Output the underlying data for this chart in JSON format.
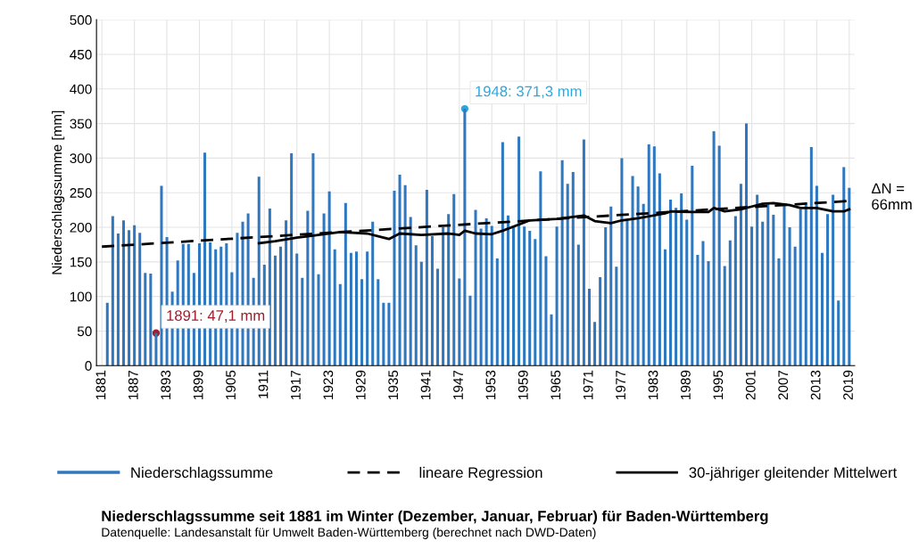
{
  "chart_data": {
    "type": "bar",
    "title": "Niederschlagssumme seit 1881 im Winter (Dezember, Januar, Februar) für Baden-Württemberg",
    "ylabel": "Niederschlagssumme [mm]",
    "x": [
      1882,
      1883,
      1884,
      1885,
      1886,
      1887,
      1888,
      1889,
      1890,
      1891,
      1892,
      1893,
      1894,
      1895,
      1896,
      1897,
      1898,
      1899,
      1900,
      1901,
      1902,
      1903,
      1904,
      1905,
      1906,
      1907,
      1908,
      1909,
      1910,
      1911,
      1912,
      1913,
      1914,
      1915,
      1916,
      1917,
      1918,
      1919,
      1920,
      1921,
      1922,
      1923,
      1924,
      1925,
      1926,
      1927,
      1928,
      1929,
      1930,
      1931,
      1932,
      1933,
      1934,
      1935,
      1936,
      1937,
      1938,
      1939,
      1940,
      1941,
      1942,
      1943,
      1944,
      1945,
      1946,
      1947,
      1948,
      1949,
      1950,
      1951,
      1952,
      1953,
      1954,
      1955,
      1956,
      1957,
      1958,
      1959,
      1960,
      1961,
      1962,
      1963,
      1964,
      1965,
      1966,
      1967,
      1968,
      1969,
      1970,
      1971,
      1972,
      1973,
      1974,
      1975,
      1976,
      1977,
      1978,
      1979,
      1980,
      1981,
      1982,
      1983,
      1984,
      1985,
      1986,
      1987,
      1988,
      1989,
      1990,
      1991,
      1992,
      1993,
      1994,
      1995,
      1996,
      1997,
      1998,
      1999,
      2000,
      2001,
      2002,
      2003,
      2004,
      2005,
      2006,
      2007,
      2008,
      2009,
      2010,
      2011,
      2012,
      2013,
      2014,
      2015,
      2016,
      2017,
      2018,
      2019
    ],
    "series": [
      {
        "type": "scatter",
        "color": "#a01f2d",
        "x": [
          1891
        ],
        "values": [
          47.1
        ]
      },
      {
        "type": "scatter",
        "color": "#29a8e0",
        "x": [
          1948
        ],
        "values": [
          371.3
        ]
      },
      {
        "name": "Niederschlagssumme",
        "color": "#2f78c0",
        "values": [
          91,
          216,
          191,
          210,
          196,
          203,
          192,
          134,
          133,
          47.1,
          260,
          186,
          107,
          152,
          176,
          176,
          134,
          177,
          308,
          178,
          168,
          172,
          177,
          135,
          192,
          208,
          220,
          127,
          273,
          146,
          227,
          159,
          172,
          210,
          307,
          162,
          127,
          224,
          307,
          132,
          220,
          252,
          168,
          118,
          235,
          163,
          165,
          125,
          165,
          208,
          125,
          91,
          91,
          253,
          276,
          261,
          215,
          174,
          150,
          254,
          187,
          140,
          200,
          219,
          248,
          126,
          371.3,
          101,
          225,
          198,
          213,
          202,
          155,
          323,
          217,
          200,
          331,
          201,
          195,
          183,
          281,
          158,
          74,
          201,
          297,
          263,
          280,
          175,
          327,
          111,
          63,
          128,
          200,
          230,
          143,
          300,
          210,
          274,
          259,
          234,
          320,
          317,
          278,
          168,
          240,
          228,
          249,
          211,
          289,
          160,
          180,
          151,
          339,
          318,
          144,
          181,
          216,
          263,
          350,
          201,
          247,
          208,
          235,
          218,
          155,
          234,
          200,
          172,
          226,
          236,
          316,
          260,
          163,
          219,
          247,
          94,
          287,
          257
        ]
      },
      {
        "name": "lineare Regression",
        "type": "line",
        "color": "#000000",
        "line_style": "dashed",
        "x": [
          1881,
          2019
        ],
        "values": [
          172,
          238
        ]
      },
      {
        "name": "30-jähriger gleitender Mittelwert",
        "type": "line",
        "color": "#000000",
        "line_style": "solid",
        "x": [
          1910,
          1913,
          1917,
          1920,
          1925,
          1930,
          1933,
          1934,
          1936,
          1940,
          1945,
          1947,
          1948,
          1950,
          1953,
          1955,
          1960,
          1965,
          1970,
          1972,
          1975,
          1977,
          1980,
          1985,
          1986,
          1990,
          1993,
          1994,
          1996,
          1999,
          2001,
          2003,
          2005,
          2008,
          2010,
          2013,
          2016,
          2018,
          2019
        ],
        "values": [
          177,
          180,
          185,
          188,
          193,
          191,
          185,
          183,
          191,
          189,
          191,
          189,
          195,
          191,
          190,
          195,
          210,
          212,
          217,
          209,
          206,
          210,
          213,
          220,
          223,
          222,
          222,
          228,
          223,
          226,
          230,
          234,
          235,
          232,
          228,
          228,
          223,
          223,
          226
        ]
      }
    ],
    "annotations": [
      {
        "text": "1891: 47,1 mm",
        "x": 1891,
        "y": 47.1
      },
      {
        "text": "1948: 371,3 mm",
        "x": 1948,
        "y": 371.3
      },
      "ΔN =\n66mm",
      "Datenquelle: Landesanstalt für Umwelt Baden-Württemberg (berechnet nach DWD-Daten)"
    ],
    "xlim": [
      1880,
      2020
    ],
    "xticks": [
      1881,
      1887,
      1893,
      1899,
      1905,
      1911,
      1917,
      1923,
      1929,
      1935,
      1941,
      1947,
      1953,
      1959,
      1965,
      1971,
      1977,
      1983,
      1989,
      1995,
      2001,
      2007,
      2013,
      2019
    ],
    "ylim": [
      0,
      500
    ],
    "yticks": [
      0,
      50,
      100,
      150,
      200,
      250,
      300,
      350,
      400,
      450,
      500
    ],
    "grid": true,
    "legend": "bottom"
  }
}
